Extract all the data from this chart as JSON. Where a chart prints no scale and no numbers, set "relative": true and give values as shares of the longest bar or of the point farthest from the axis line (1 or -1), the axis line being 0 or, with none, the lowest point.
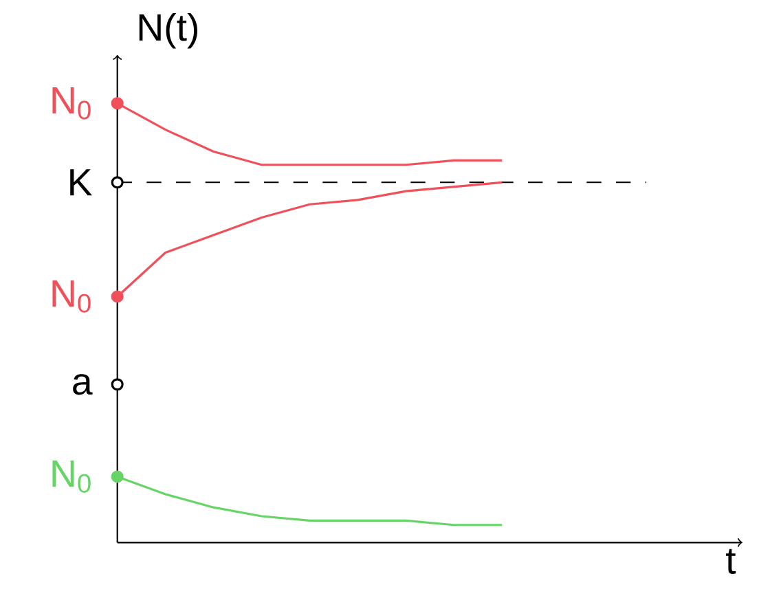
{
  "chart_data": {
    "type": "line",
    "relative": true,
    "xlabel": "t",
    "ylabel": "N(t)",
    "categories": [
      null,
      null,
      null,
      null,
      null,
      null,
      null,
      null,
      null,
      null,
      null,
      null
    ],
    "series": [
      {
        "name": "N$_{0}$",
        "color": "#f0505a",
        "values": [
          1.0,
          0.94,
          0.89,
          0.86,
          0.86,
          0.86,
          0.86,
          0.87,
          0.87,
          null,
          null,
          null
        ]
      },
      {
        "name": "N$_{0}$",
        "color": "#f0505a",
        "values": [
          0.56,
          0.66,
          0.7,
          0.74,
          0.77,
          0.78,
          0.8,
          0.81,
          0.82,
          null,
          null,
          null
        ]
      },
      {
        "name": "N$_{0}$",
        "color": "#66d466",
        "values": [
          0.15,
          0.11,
          0.08,
          0.06,
          0.05,
          0.05,
          0.05,
          0.04,
          0.04,
          null,
          null,
          null
        ]
      }
    ],
    "annotations": [
      "a"
    ],
    "ref_lines": [
      {
        "axis": "y",
        "value": 0.82,
        "label": "K",
        "color": "#000000",
        "line_style": "dashed"
      }
    ]
  }
}
